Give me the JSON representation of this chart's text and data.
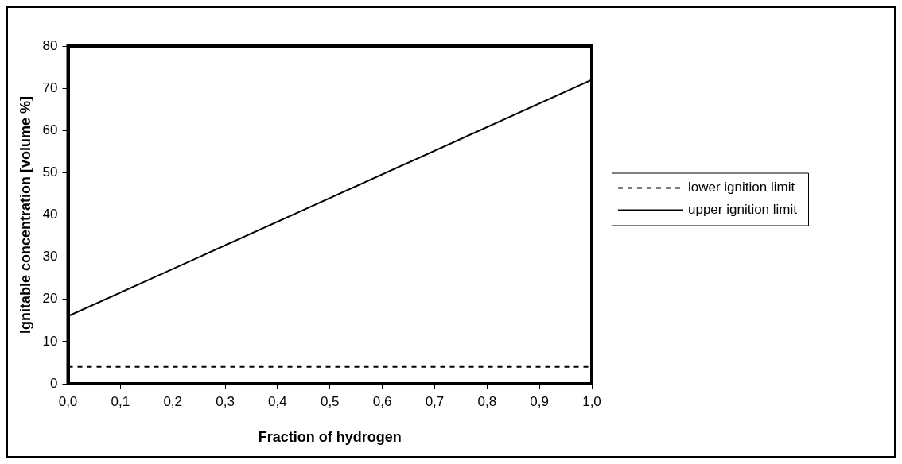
{
  "chart_data": {
    "type": "line",
    "xlabel": "Fraction of hydrogen",
    "ylabel": "Ignitable concentration [volume %]",
    "x": [
      0,
      1
    ],
    "series": [
      {
        "name": "lower ignition limit",
        "color": "#000000",
        "values": [
          4,
          4
        ],
        "line_style": "dashed"
      },
      {
        "name": "upper ignition limit",
        "color": "#000000",
        "values": [
          16,
          72
        ],
        "line_style": "solid"
      }
    ],
    "xlim": [
      0,
      1
    ],
    "xticks": [
      {
        "value": 0,
        "label": "0,0"
      },
      {
        "value": 0.1,
        "label": "0,1"
      },
      {
        "value": 0.2,
        "label": "0,2"
      },
      {
        "value": 0.3,
        "label": "0,3"
      },
      {
        "value": 0.4,
        "label": "0,4"
      },
      {
        "value": 0.5,
        "label": "0,5"
      },
      {
        "value": 0.6,
        "label": "0,6"
      },
      {
        "value": 0.7,
        "label": "0,7"
      },
      {
        "value": 0.8,
        "label": "0,8"
      },
      {
        "value": 0.9,
        "label": "0,9"
      },
      {
        "value": 1,
        "label": "1,0"
      }
    ],
    "ylim": [
      0,
      80
    ],
    "yticks": [
      0,
      10,
      20,
      30,
      40,
      50,
      60,
      70,
      80
    ],
    "grid": false,
    "legend": "right",
    "marker": "none"
  }
}
